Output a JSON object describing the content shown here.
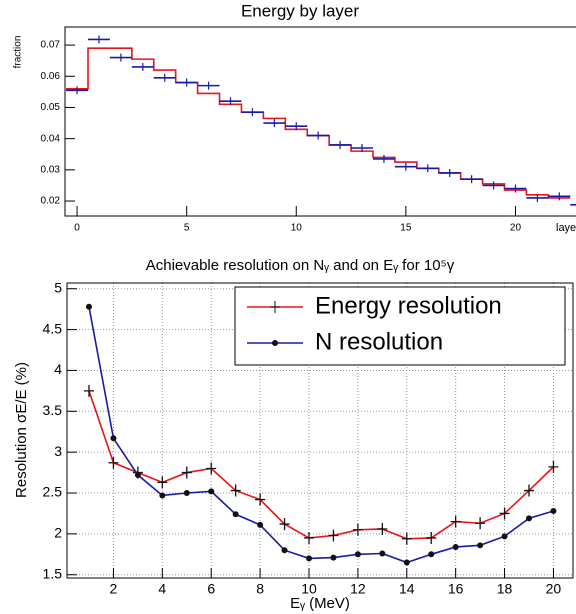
{
  "chart_data": [
    {
      "type": "step",
      "title": "Energy by layer",
      "y_label": "fraction",
      "x_label": "layer",
      "x": [
        0,
        1,
        2,
        3,
        4,
        5,
        6,
        7,
        8,
        9,
        10,
        11,
        12,
        13,
        14,
        15,
        16,
        17,
        18,
        19,
        20,
        21,
        22,
        23
      ],
      "series": [
        {
          "style": "step",
          "color": "#e8141c",
          "values": [
            0.056,
            0.069,
            0.069,
            0.0655,
            0.062,
            0.058,
            0.0545,
            0.051,
            0.0485,
            0.0465,
            0.043,
            0.041,
            0.038,
            0.036,
            0.034,
            0.0325,
            0.0305,
            0.029,
            0.027,
            0.0255,
            0.0235,
            0.022,
            0.021,
            null
          ]
        },
        {
          "style": "points",
          "color": "#1a1aa8",
          "values": [
            0.0555,
            0.0718,
            0.066,
            0.063,
            0.0595,
            0.058,
            0.057,
            0.052,
            0.0485,
            0.045,
            0.044,
            0.041,
            0.038,
            0.037,
            0.0335,
            0.031,
            0.0305,
            0.029,
            0.027,
            0.025,
            0.024,
            0.021,
            0.0215,
            0.0188
          ]
        }
      ],
      "xlim": [
        -0.55,
        23.4
      ],
      "xticks": [
        0,
        5,
        10,
        15,
        20
      ],
      "ylim": [
        0.0152,
        0.0758
      ],
      "yticks": [
        0.02,
        0.03,
        0.04,
        0.05,
        0.06,
        0.07
      ]
    },
    {
      "type": "line",
      "title": "Achievable resolution on Nᵧ and on Eᵧ for 10⁵γ",
      "y_label": "Resolution σE/E (%)",
      "x_label": "Eᵧ (MeV)",
      "x": [
        1,
        2,
        3,
        4,
        5,
        6,
        7,
        8,
        9,
        10,
        11,
        12,
        13,
        14,
        15,
        16,
        17,
        18,
        19,
        20
      ],
      "series": [
        {
          "name": "Energy resolution",
          "marker": "cross",
          "color": "#e8141c",
          "values": [
            3.75,
            2.87,
            2.75,
            2.63,
            2.75,
            2.8,
            2.53,
            2.42,
            2.12,
            1.95,
            1.98,
            2.05,
            2.06,
            1.94,
            1.95,
            2.15,
            2.13,
            2.25,
            2.53,
            2.82
          ]
        },
        {
          "name": "N resolution",
          "marker": "dot",
          "color": "#1a1aa8",
          "values": [
            4.78,
            3.17,
            2.72,
            2.47,
            2.5,
            2.52,
            2.24,
            2.11,
            1.8,
            1.7,
            1.71,
            1.75,
            1.76,
            1.65,
            1.75,
            1.84,
            1.86,
            1.97,
            2.19,
            2.28
          ]
        }
      ],
      "xlim": [
        0.1,
        20.8
      ],
      "xticks": [
        2,
        4,
        6,
        8,
        10,
        12,
        14,
        16,
        18,
        20
      ],
      "ylim": [
        1.46,
        5.07
      ],
      "yticks": [
        1.5,
        2,
        2.5,
        3,
        3.5,
        4,
        4.5,
        5
      ],
      "grid": true,
      "legend": "top-right"
    }
  ]
}
